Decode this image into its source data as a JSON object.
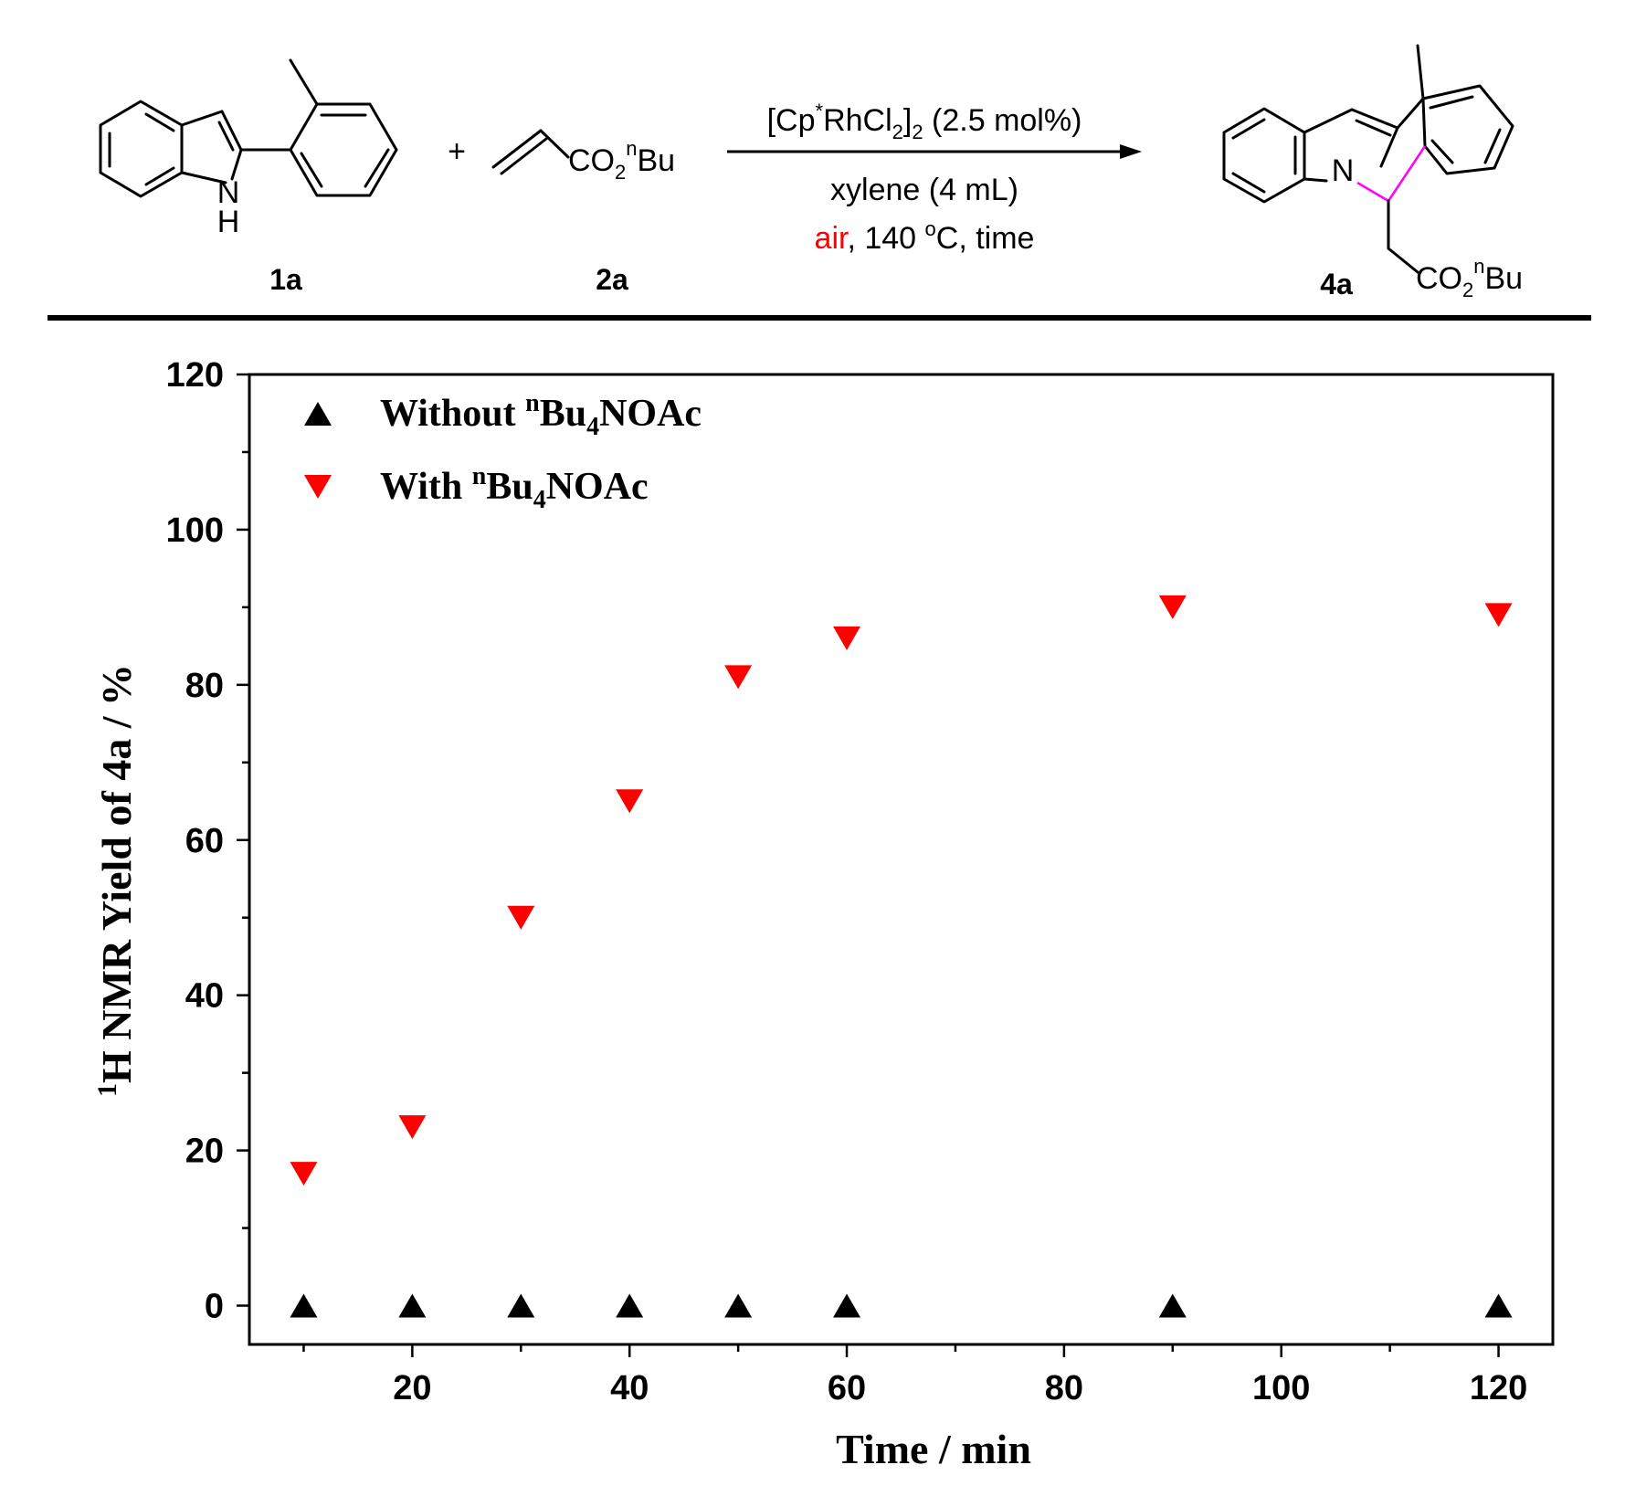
{
  "scheme": {
    "reactant1_label": "1a",
    "reactant1_nh": "N",
    "reactant1_h": "H",
    "plus": "+",
    "reactant2_group": "CO",
    "reactant2_sub": "2",
    "reactant2_sup": "n",
    "reactant2_tail": "Bu",
    "reactant2_label": "2a",
    "cond1_a": "[Cp",
    "cond1_star": "*",
    "cond1_b": "RhCl",
    "cond1_sub2": "2",
    "cond1_c": "]",
    "cond1_sub2b": "2",
    "cond1_d": " (2.5 mol%)",
    "cond2": "xylene (4 mL)",
    "cond3_air": "air",
    "cond3_a": ", 140 ",
    "cond3_deg": "o",
    "cond3_b": "C, time",
    "air_color": "#ff0000",
    "product_n": "N",
    "product_label": "4a",
    "product_group": "CO",
    "product_sub": "2",
    "product_sup": "n",
    "product_tail": "Bu",
    "bond_highlight_color": "#ff00ff"
  },
  "chart_data": {
    "type": "scatter",
    "xlabel": "Time / min",
    "ylabel_sup": "1",
    "ylabel_main": "H NMR Yield of 4a / %",
    "xlim": [
      5,
      125
    ],
    "ylim": [
      -5,
      120
    ],
    "xticks": [
      20,
      40,
      60,
      80,
      100,
      120
    ],
    "yticks": [
      0,
      20,
      40,
      60,
      80,
      100,
      120
    ],
    "grid": false,
    "legend_position": "top-left",
    "series": [
      {
        "name_a": "Without ",
        "name_sup": "n",
        "name_b": "Bu",
        "name_sub": "4",
        "name_c": "NOAc",
        "marker": "triangle-up",
        "color": "#000000",
        "x": [
          10,
          20,
          30,
          40,
          50,
          60,
          90,
          120
        ],
        "y": [
          0,
          0,
          0,
          0,
          0,
          0,
          0,
          0
        ]
      },
      {
        "name_a": "With ",
        "name_sup": "n",
        "name_b": "Bu",
        "name_sub": "4",
        "name_c": "NOAc",
        "marker": "triangle-down",
        "color": "#ff0000",
        "x": [
          10,
          20,
          30,
          40,
          50,
          60,
          90,
          120
        ],
        "y": [
          17,
          23,
          50,
          65,
          81,
          86,
          90,
          89
        ]
      }
    ]
  }
}
